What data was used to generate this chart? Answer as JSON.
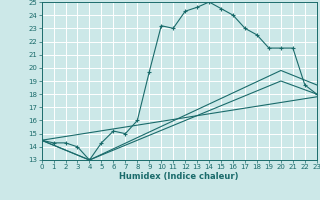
{
  "xlabel": "Humidex (Indice chaleur)",
  "xlim": [
    0,
    23
  ],
  "ylim": [
    13,
    25
  ],
  "yticks": [
    13,
    14,
    15,
    16,
    17,
    18,
    19,
    20,
    21,
    22,
    23,
    24,
    25
  ],
  "xticks": [
    0,
    1,
    2,
    3,
    4,
    5,
    6,
    7,
    8,
    9,
    10,
    11,
    12,
    13,
    14,
    15,
    16,
    17,
    18,
    19,
    20,
    21,
    22,
    23
  ],
  "line_color": "#1a6b6b",
  "bg_color": "#cce8e8",
  "grid_color": "#ffffff",
  "lines": [
    {
      "x": [
        0,
        1,
        2,
        3,
        4,
        5,
        6,
        7,
        8,
        9,
        10,
        11,
        12,
        13,
        14,
        15,
        16,
        17,
        18,
        19,
        20,
        21,
        22,
        23
      ],
      "y": [
        14.5,
        14.3,
        14.3,
        14.0,
        13.0,
        14.3,
        15.2,
        15.0,
        16.0,
        19.7,
        23.2,
        23.0,
        24.3,
        24.6,
        25.0,
        24.5,
        24.0,
        23.0,
        22.5,
        21.5,
        21.5,
        21.5,
        18.7,
        18.0
      ],
      "marker": "+"
    },
    {
      "x": [
        0,
        4,
        20,
        23
      ],
      "y": [
        14.5,
        13.0,
        19.8,
        18.7
      ],
      "marker": null
    },
    {
      "x": [
        0,
        4,
        20,
        23
      ],
      "y": [
        14.5,
        13.0,
        19.0,
        18.0
      ],
      "marker": null
    },
    {
      "x": [
        0,
        23
      ],
      "y": [
        14.5,
        17.8
      ],
      "marker": null
    }
  ]
}
